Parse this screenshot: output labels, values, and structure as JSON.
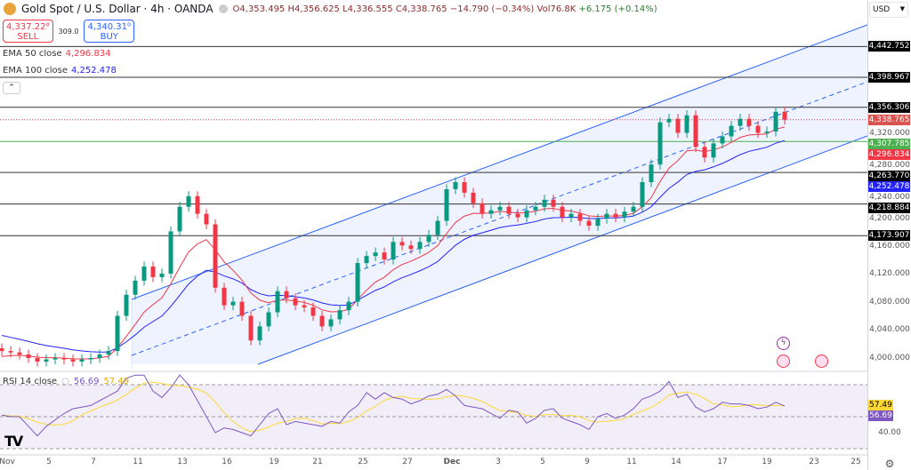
{
  "header": {
    "title": "Gold Spot / U.S. Dollar · 4h · OANDA",
    "open": "O4,353.495",
    "high": "H4,356.625",
    "low": "L4,336.555",
    "close": "C4,338.765",
    "change": "−14.790 (−0.34%)",
    "volume": "Vol76.8K",
    "vol_change": "+6.175 (+0.14%)"
  },
  "trade": {
    "sell_price": "4,337.22⁰",
    "sell_label": "SELL",
    "spread": "309.0",
    "buy_price": "4,340.31⁰",
    "buy_label": "BUY"
  },
  "indicators": {
    "ema50_label": "EMA 50 close",
    "ema50_value": "4,296.834",
    "ema100_label": "EMA 100 close",
    "ema100_value": "4,252.478",
    "rsi_label": "RSI 14 close",
    "rsi_value": "56.69",
    "rsi_ma_value": "57.49"
  },
  "axis": {
    "currency": "USD",
    "price_ticks": [
      "4,320.000",
      "4,280.000",
      "4,240.000",
      "4,200.000",
      "4,160.000",
      "4,120.000",
      "4,080.000",
      "4,040.000",
      "4,000.000"
    ],
    "rsi_tick": "40.00",
    "x_ticks": [
      "Nov",
      "5",
      "7",
      "11",
      "13",
      "16",
      "19",
      "21",
      "25",
      "27",
      "Dec",
      "3",
      "5",
      "9",
      "11",
      "14",
      "17",
      "19",
      "23",
      "25"
    ]
  },
  "price_tags": [
    {
      "value": "4,442.752",
      "color": "#000000"
    },
    {
      "value": "4,398.967",
      "color": "#000000"
    },
    {
      "value": "4,356.306",
      "color": "#000000"
    },
    {
      "value": "4,338.765",
      "color": "#d9534f"
    },
    {
      "value": "4,307.785",
      "color": "#4caf50"
    },
    {
      "value": "4,296.834",
      "color": "#f23645"
    },
    {
      "value": "4,263.770",
      "color": "#000000"
    },
    {
      "value": "4,252.478",
      "color": "#2323ff"
    },
    {
      "value": "4,218.884",
      "color": "#000000"
    },
    {
      "value": "4,173.907",
      "color": "#000000"
    }
  ],
  "colors": {
    "up": "#089981",
    "down": "#f23645",
    "ema50": "#f23645",
    "ema100": "#2323ff",
    "channel": "#2962ff",
    "rsi": "#7e57c2",
    "rsi_ma": "#fdd835"
  },
  "chart_data": {
    "type": "candlestick",
    "timeframe": "4h",
    "ylim": [
      3985,
      4470
    ],
    "levels": [
      4442.752,
      4398.967,
      4356.306,
      4307.785,
      4263.77,
      4218.884,
      4173.907
    ],
    "last_close": 4338.765,
    "closes": [
      4010,
      4008,
      4005,
      4000,
      3995,
      3998,
      4000,
      3998,
      3995,
      3998,
      4000,
      4005,
      4010,
      4060,
      4090,
      4110,
      4130,
      4115,
      4120,
      4180,
      4215,
      4230,
      4205,
      4190,
      4100,
      4075,
      4080,
      4060,
      4025,
      4045,
      4065,
      4095,
      4085,
      4075,
      4072,
      4060,
      4045,
      4055,
      4068,
      4080,
      4135,
      4145,
      4150,
      4140,
      4165,
      4160,
      4155,
      4165,
      4175,
      4195,
      4240,
      4250,
      4235,
      4220,
      4205,
      4210,
      4215,
      4205,
      4200,
      4210,
      4215,
      4225,
      4215,
      4200,
      4205,
      4195,
      4188,
      4198,
      4205,
      4200,
      4208,
      4215,
      4250,
      4275,
      4335,
      4340,
      4320,
      4345,
      4300,
      4285,
      4305,
      4315,
      4330,
      4340,
      4330,
      4320,
      4322,
      4350,
      4338.765
    ],
    "rsi": {
      "levels": [
        70,
        50,
        30
      ],
      "values": [
        51,
        50,
        50,
        44,
        38,
        44,
        48,
        52,
        55,
        56,
        57,
        60,
        63,
        66,
        74,
        76,
        76,
        66,
        62,
        68,
        76,
        70,
        60,
        50,
        40,
        43,
        42,
        40,
        38,
        45,
        52,
        55,
        45,
        47,
        46,
        45,
        44,
        47,
        46,
        53,
        57,
        65,
        61,
        65,
        62,
        61,
        58,
        60,
        63,
        64,
        67,
        63,
        57,
        56,
        55,
        52,
        49,
        54,
        53,
        46,
        49,
        54,
        55,
        49,
        47,
        45,
        42,
        50,
        52,
        49,
        51,
        55,
        61,
        63,
        66,
        72,
        62,
        64,
        56,
        53,
        55,
        59,
        58,
        58,
        57,
        55,
        56,
        59,
        56.69
      ]
    }
  }
}
